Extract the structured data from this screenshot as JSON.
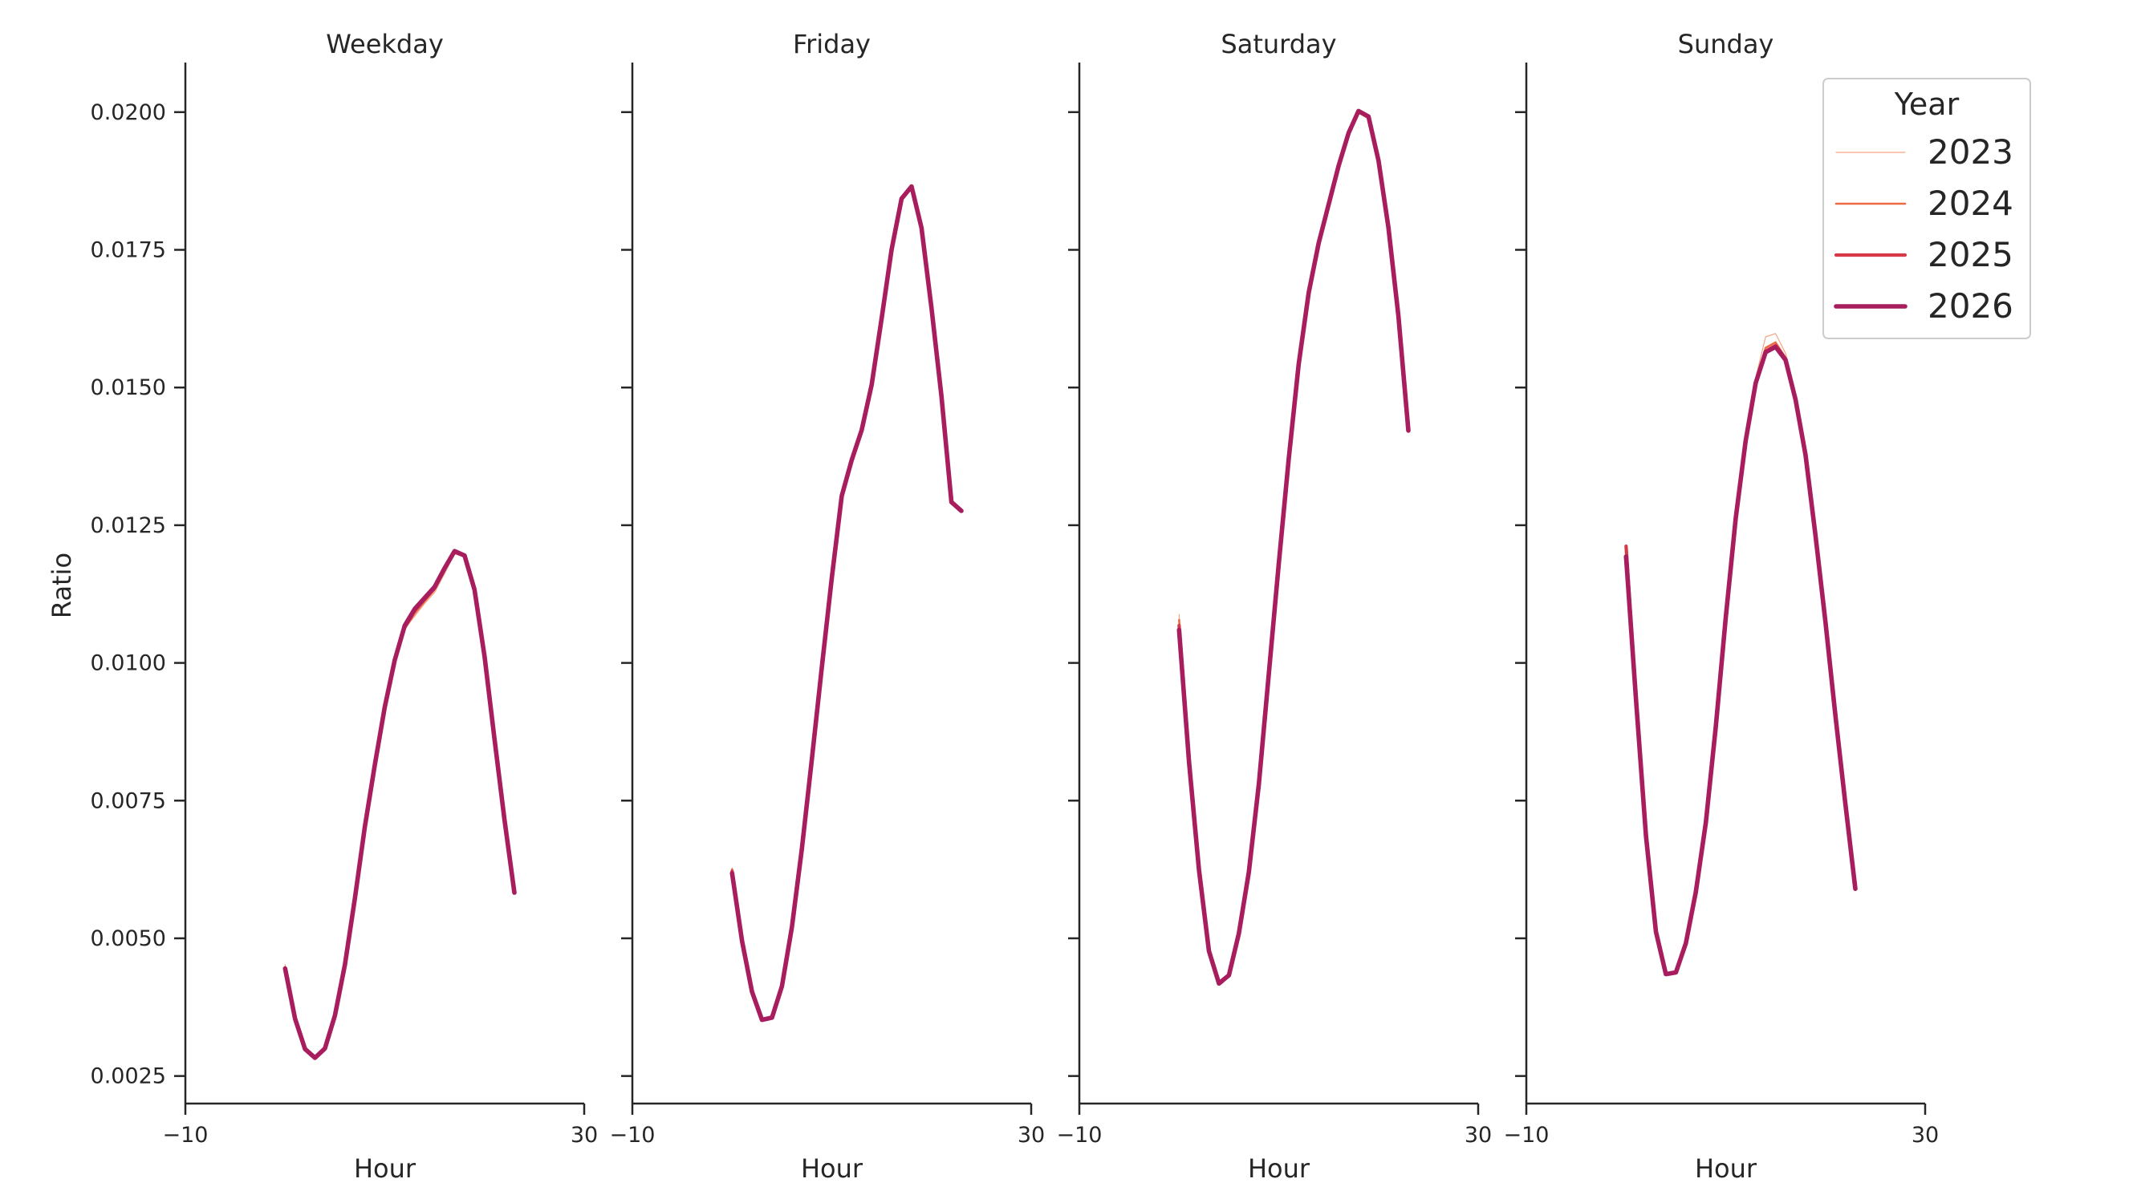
{
  "chart_data": {
    "type": "line",
    "x_label": "Hour",
    "y_label": "Ratio",
    "xlim": [
      -10,
      30
    ],
    "x_ticks": [
      -10,
      30
    ],
    "x_tick_labels": [
      "−10",
      "30"
    ],
    "ylim": [
      0.002,
      0.0209
    ],
    "y_ticks": [
      0.0025,
      0.005,
      0.0075,
      0.01,
      0.0125,
      0.015,
      0.0175,
      0.02
    ],
    "y_tick_labels": [
      "0.0025",
      "0.0050",
      "0.0075",
      "0.0100",
      "0.0125",
      "0.0150",
      "0.0175",
      "0.0200"
    ],
    "grid": false,
    "legend": {
      "title": "Year",
      "position": "top-right",
      "entries": [
        {
          "label": "2023",
          "color": "#f3a582",
          "width": 1.2
        },
        {
          "label": "2024",
          "color": "#ee6a46",
          "width": 2.6
        },
        {
          "label": "2025",
          "color": "#d63a48",
          "width": 4.2
        },
        {
          "label": "2026",
          "color": "#a71d5d",
          "width": 5.6
        }
      ]
    },
    "hours": [
      0,
      1,
      2,
      3,
      4,
      5,
      6,
      7,
      8,
      9,
      10,
      11,
      12,
      13,
      14,
      15,
      16,
      17,
      18,
      19,
      20,
      21,
      22,
      23
    ],
    "panels": [
      {
        "title": "Weekday",
        "series": [
          {
            "name": "2023",
            "values": [
              0.00452,
              0.00358,
              0.00302,
              0.00285,
              0.00302,
              0.00362,
              0.00455,
              0.00575,
              0.00705,
              0.00818,
              0.00922,
              0.01008,
              0.01062,
              0.01085,
              0.01108,
              0.01128,
              0.01162,
              0.01198,
              0.01192,
              0.01128,
              0.01008,
              0.00858,
              0.00712,
              0.00582
            ]
          },
          {
            "name": "2024",
            "values": [
              0.00448,
              0.00355,
              0.003,
              0.00284,
              0.003,
              0.0036,
              0.00453,
              0.00572,
              0.00703,
              0.00816,
              0.0092,
              0.01006,
              0.01062,
              0.0109,
              0.01112,
              0.01133,
              0.01167,
              0.012,
              0.01193,
              0.0113,
              0.0101,
              0.0086,
              0.00714,
              0.00582
            ]
          },
          {
            "name": "2025",
            "values": [
              0.00446,
              0.00354,
              0.00299,
              0.00283,
              0.003,
              0.0036,
              0.00452,
              0.00572,
              0.00702,
              0.00815,
              0.0092,
              0.01005,
              0.01065,
              0.01095,
              0.01116,
              0.01136,
              0.01171,
              0.01202,
              0.01195,
              0.01132,
              0.01011,
              0.00862,
              0.00716,
              0.00583
            ]
          },
          {
            "name": "2026",
            "values": [
              0.00445,
              0.00354,
              0.00299,
              0.00283,
              0.003,
              0.0036,
              0.00452,
              0.00572,
              0.00702,
              0.00815,
              0.0092,
              0.01005,
              0.01068,
              0.01098,
              0.01118,
              0.01138,
              0.01172,
              0.01203,
              0.01195,
              0.01133,
              0.01012,
              0.00862,
              0.00716,
              0.00583
            ]
          }
        ]
      },
      {
        "title": "Friday",
        "series": [
          {
            "name": "2023",
            "values": [
              0.00628,
              0.00498,
              0.00405,
              0.00352,
              0.00356,
              0.00412,
              0.00518,
              0.0066,
              0.0082,
              0.00988,
              0.0115,
              0.01298,
              0.01362,
              0.01418,
              0.015,
              0.0162,
              0.01745,
              0.01838,
              0.0186,
              0.01785,
              0.0164,
              0.0148,
              0.0129,
              0.01275
            ]
          },
          {
            "name": "2024",
            "values": [
              0.00625,
              0.00497,
              0.00404,
              0.00352,
              0.00356,
              0.00412,
              0.00518,
              0.0066,
              0.00822,
              0.0099,
              0.01152,
              0.013,
              0.01364,
              0.0142,
              0.01502,
              0.01622,
              0.01748,
              0.0184,
              0.01862,
              0.01787,
              0.01642,
              0.01482,
              0.0129,
              0.01275
            ]
          },
          {
            "name": "2025",
            "values": [
              0.00622,
              0.00496,
              0.00404,
              0.00352,
              0.00356,
              0.00413,
              0.00519,
              0.00661,
              0.00823,
              0.00991,
              0.01153,
              0.01302,
              0.01366,
              0.01422,
              0.01504,
              0.01624,
              0.01749,
              0.01842,
              0.01864,
              0.01789,
              0.01643,
              0.01483,
              0.01291,
              0.01276
            ]
          },
          {
            "name": "2026",
            "values": [
              0.00618,
              0.00495,
              0.00403,
              0.00352,
              0.00356,
              0.00413,
              0.0052,
              0.00662,
              0.00824,
              0.00992,
              0.01154,
              0.01303,
              0.01368,
              0.01423,
              0.01505,
              0.01625,
              0.0175,
              0.01843,
              0.01865,
              0.0179,
              0.01644,
              0.01484,
              0.01292,
              0.01276
            ]
          }
        ]
      },
      {
        "title": "Saturday",
        "series": [
          {
            "name": "2023",
            "values": [
              0.01088,
              0.00828,
              0.00628,
              0.00478,
              0.00418,
              0.00432,
              0.00508,
              0.00618,
              0.00778,
              0.00978,
              0.01178,
              0.01368,
              0.01538,
              0.01668,
              0.01758,
              0.01828,
              0.01898,
              0.01958,
              0.01998,
              0.01988,
              0.01908,
              0.01788,
              0.01628,
              0.01422
            ]
          },
          {
            "name": "2024",
            "values": [
              0.01078,
              0.00825,
              0.00626,
              0.00478,
              0.00418,
              0.00433,
              0.00508,
              0.00619,
              0.00779,
              0.00979,
              0.01179,
              0.01369,
              0.0154,
              0.0167,
              0.0176,
              0.0183,
              0.019,
              0.0196,
              0.02,
              0.0199,
              0.0191,
              0.01789,
              0.01629,
              0.01422
            ]
          },
          {
            "name": "2025",
            "values": [
              0.01068,
              0.00822,
              0.00625,
              0.00477,
              0.00418,
              0.00433,
              0.00509,
              0.0062,
              0.0078,
              0.0098,
              0.0118,
              0.0137,
              0.01541,
              0.01671,
              0.01761,
              0.01831,
              0.01901,
              0.01961,
              0.02001,
              0.01991,
              0.01911,
              0.0179,
              0.0163,
              0.01422
            ]
          },
          {
            "name": "2026",
            "values": [
              0.0106,
              0.0082,
              0.00624,
              0.00477,
              0.00418,
              0.00433,
              0.00509,
              0.0062,
              0.0078,
              0.0098,
              0.0118,
              0.0137,
              0.01542,
              0.01672,
              0.01762,
              0.01832,
              0.01902,
              0.01962,
              0.02002,
              0.01992,
              0.01912,
              0.0179,
              0.0163,
              0.01422
            ]
          }
        ]
      },
      {
        "title": "Sunday",
        "series": [
          {
            "name": "2023",
            "values": [
              0.01208,
              0.00938,
              0.00688,
              0.00512,
              0.00435,
              0.00438,
              0.0049,
              0.00582,
              0.00708,
              0.00882,
              0.01078,
              0.01258,
              0.01408,
              0.01518,
              0.01592,
              0.01598,
              0.01562,
              0.01488,
              0.01386,
              0.01238,
              0.01078,
              0.00908,
              0.00748,
              0.0059
            ]
          },
          {
            "name": "2024",
            "values": [
              0.01205,
              0.00936,
              0.00687,
              0.00512,
              0.00435,
              0.00438,
              0.0049,
              0.00583,
              0.00709,
              0.00883,
              0.0108,
              0.0126,
              0.01406,
              0.01512,
              0.01572,
              0.01582,
              0.01554,
              0.01482,
              0.01382,
              0.01234,
              0.01076,
              0.00906,
              0.00746,
              0.0059
            ]
          },
          {
            "name": "2025",
            "values": [
              0.01212,
              0.00935,
              0.00686,
              0.00512,
              0.00435,
              0.00438,
              0.00491,
              0.00583,
              0.0071,
              0.00884,
              0.01082,
              0.01262,
              0.01404,
              0.0151,
              0.01566,
              0.01576,
              0.01552,
              0.0148,
              0.0138,
              0.01233,
              0.01075,
              0.00905,
              0.00745,
              0.0059
            ]
          },
          {
            "name": "2026",
            "values": [
              0.01193,
              0.00933,
              0.00686,
              0.00512,
              0.00435,
              0.00438,
              0.00491,
              0.00584,
              0.0071,
              0.00884,
              0.01082,
              0.01262,
              0.01403,
              0.01508,
              0.01564,
              0.01574,
              0.0155,
              0.01478,
              0.01378,
              0.01232,
              0.01074,
              0.00904,
              0.00744,
              0.0059
            ]
          }
        ]
      }
    ]
  }
}
